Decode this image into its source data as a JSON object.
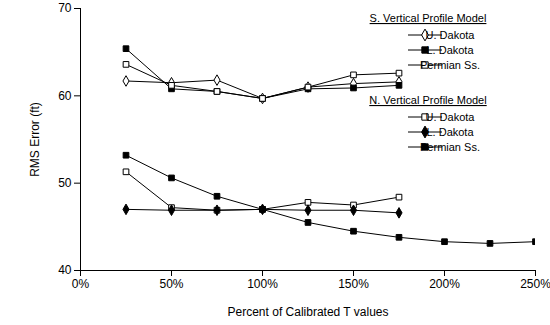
{
  "chart_data": {
    "type": "line",
    "x_label": "Percent of Calibrated T values",
    "y_label": "RMS Error (ft)",
    "x": [
      25,
      50,
      75,
      100,
      125,
      150,
      175,
      200,
      225,
      250
    ],
    "xlim": [
      0,
      250
    ],
    "xticks": [
      {
        "value": 0,
        "label": "0%"
      },
      {
        "value": 50,
        "label": "50%"
      },
      {
        "value": 100,
        "label": "100%"
      },
      {
        "value": 150,
        "label": "150%"
      },
      {
        "value": 200,
        "label": "200%"
      },
      {
        "value": 250,
        "label": "250%"
      }
    ],
    "ylim": [
      40,
      70
    ],
    "yticks": [
      40,
      50,
      60,
      70
    ],
    "legend": "upper right",
    "series": [
      {
        "group": "S. Vertical Profile Model",
        "name": "U. Dakota",
        "color": "#000000",
        "marker": "open diamond",
        "values": [
          61.7,
          61.5,
          61.8,
          59.7,
          61.0,
          61.4,
          61.6,
          null,
          null,
          null
        ]
      },
      {
        "group": "S. Vertical Profile Model",
        "name": "L. Dakota",
        "color": "#000000",
        "marker": "filled square",
        "values": [
          65.4,
          60.8,
          60.5,
          59.7,
          60.8,
          60.9,
          61.2,
          null,
          null,
          null
        ]
      },
      {
        "group": "S. Vertical Profile Model",
        "name": "Permian Ss.",
        "color": "#000000",
        "marker": "open square",
        "values": [
          63.6,
          61.2,
          60.5,
          59.7,
          61.0,
          62.4,
          62.6,
          null,
          null,
          null
        ]
      },
      {
        "group": "N. Vertical Profile Model",
        "name": "U. Dakota",
        "color": "#000000",
        "marker": "open square",
        "values": [
          51.3,
          47.2,
          46.9,
          47.0,
          47.8,
          47.5,
          48.4,
          null,
          null,
          null
        ]
      },
      {
        "group": "N. Vertical Profile Model",
        "name": "L. Dakota",
        "color": "#000000",
        "marker": "filled diamond",
        "values": [
          47.0,
          46.9,
          46.9,
          47.0,
          46.9,
          46.9,
          46.6,
          null,
          null,
          null
        ]
      },
      {
        "group": "N. Vertical Profile Model",
        "name": "Permian Ss.",
        "color": "#000000",
        "marker": "filled square",
        "values": [
          53.2,
          50.6,
          48.5,
          47.0,
          45.5,
          44.5,
          43.8,
          43.3,
          43.1,
          43.3
        ]
      }
    ]
  }
}
